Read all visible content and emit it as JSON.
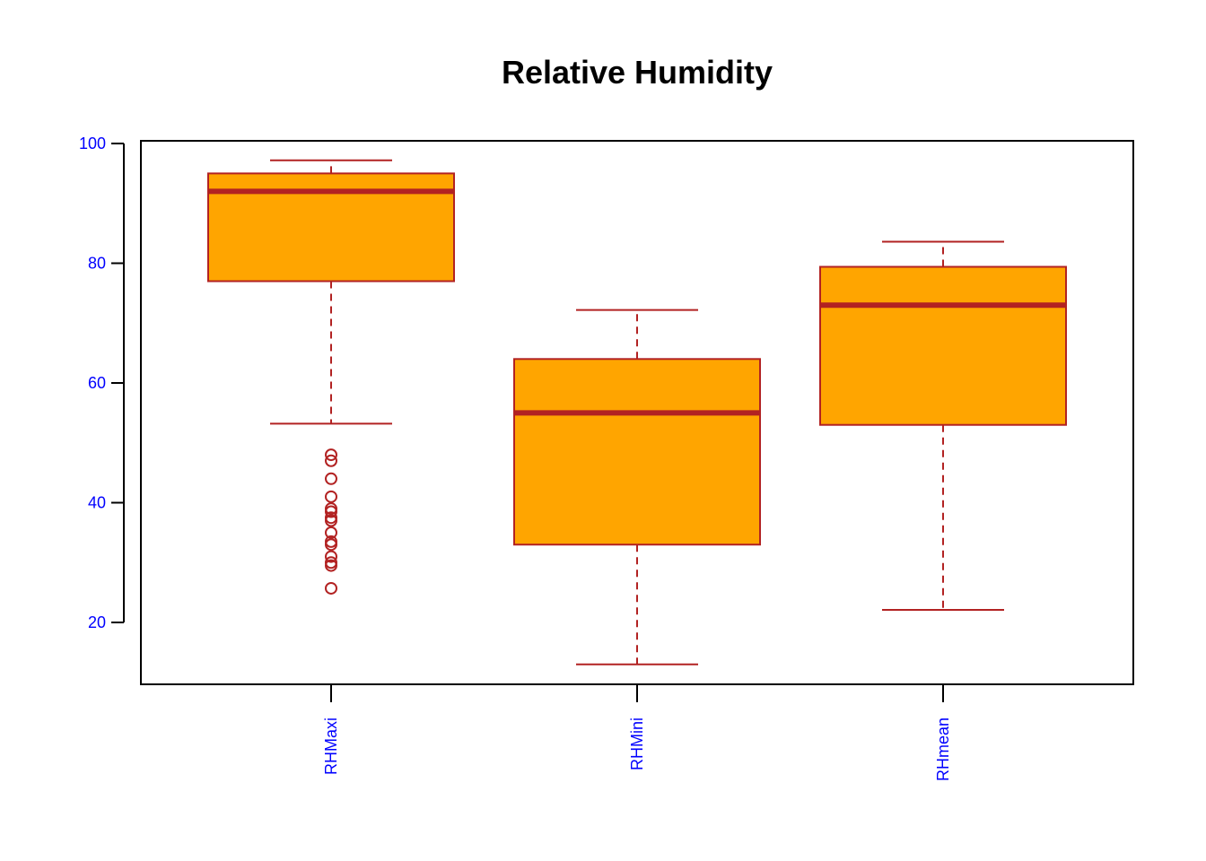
{
  "chart_data": {
    "type": "boxplot",
    "title": "Relative Humidity",
    "xlabel": "",
    "ylabel": "",
    "categories": [
      "RHMaxi",
      "RHMini",
      "RHmean"
    ],
    "ylim": [
      10,
      100
    ],
    "yticks": [
      20,
      40,
      60,
      80,
      100
    ],
    "boxes": [
      {
        "name": "RHMaxi",
        "whisker_low": 53.2,
        "q1": 77.0,
        "median": 92.0,
        "q3": 95.0,
        "whisker_high": 97.2,
        "outliers": [
          48.0,
          47.0,
          44.0,
          41.0,
          39.0,
          38.5,
          37.5,
          37.0,
          35.0,
          33.5,
          33.0,
          31.0,
          30.0,
          29.5,
          25.7
        ]
      },
      {
        "name": "RHMini",
        "whisker_low": 13.0,
        "q1": 33.0,
        "median": 55.0,
        "q3": 64.0,
        "whisker_high": 72.2,
        "outliers": []
      },
      {
        "name": "RHmean",
        "whisker_low": 22.1,
        "q1": 53.0,
        "median": 73.0,
        "q3": 79.4,
        "whisker_high": 83.6,
        "outliers": []
      }
    ],
    "colors": {
      "box_fill": "#FFA500",
      "box_border": "#B22222",
      "tick_labels": "#0000FF",
      "axis": "#000000"
    },
    "grid": false,
    "legend": "none"
  }
}
